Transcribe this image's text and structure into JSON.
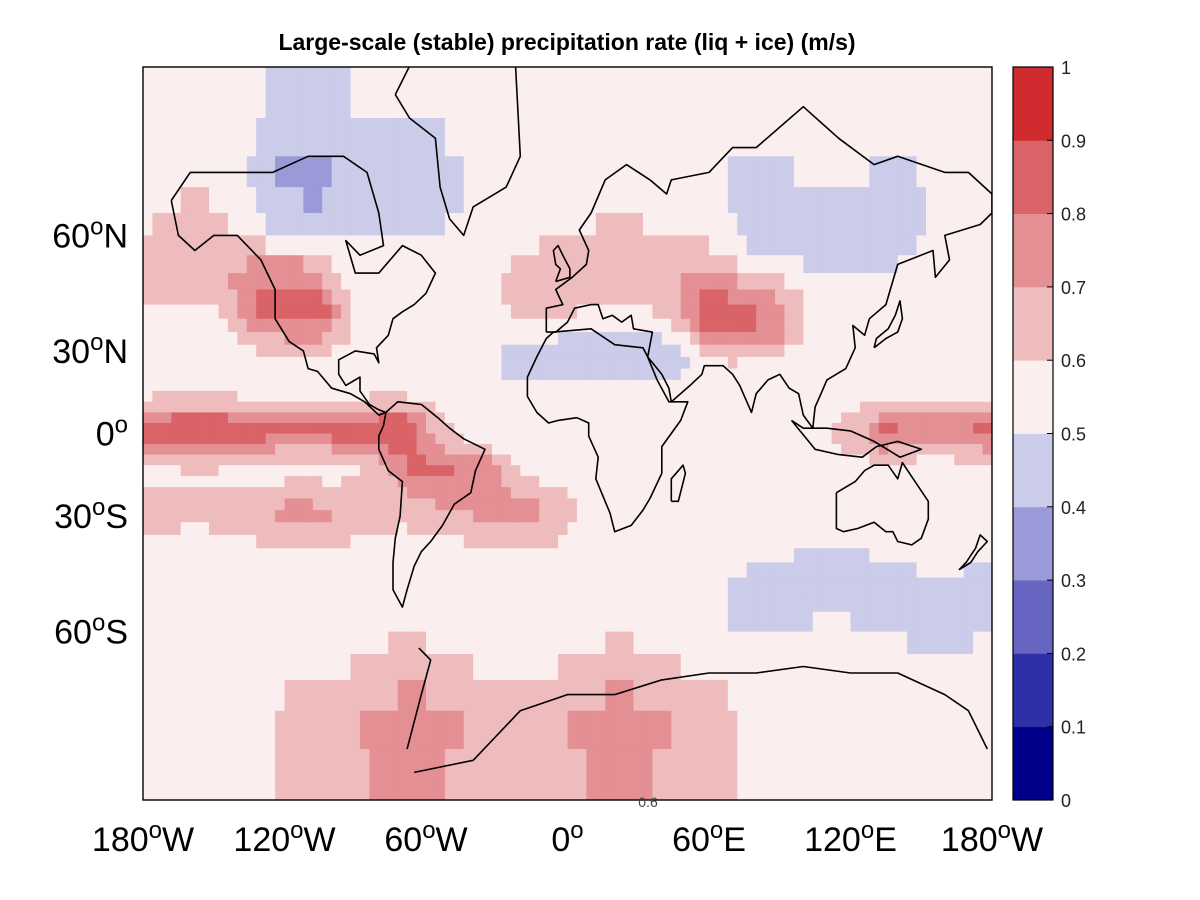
{
  "chart_data": {
    "type": "heatmap",
    "title": "Large-scale (stable) precipitation rate (liq + ice) (m/s)",
    "projection": "mercator",
    "x_ticks": [
      "180",
      "120",
      "60",
      "0",
      "60",
      "120",
      "180"
    ],
    "x_hemispheres": [
      "W",
      "W",
      "W",
      "",
      "E",
      "E",
      "W"
    ],
    "x_tick_values": [
      -180,
      -120,
      -60,
      0,
      60,
      120,
      180
    ],
    "y_ticks": [
      "60",
      "30",
      "0",
      "30",
      "60"
    ],
    "y_hemispheres": [
      "N",
      "N",
      "",
      "S",
      "S"
    ],
    "y_tick_values": [
      60,
      30,
      0,
      -30,
      -60
    ],
    "degree_symbol": "o",
    "xlim": [
      -180,
      180
    ],
    "ylim": [
      -80,
      80
    ],
    "colorbar": {
      "ticks": [
        "1",
        "0.9",
        "0.8",
        "0.7",
        "0.6",
        "0.5",
        "0.4",
        "0.3",
        "0.2",
        "0.1",
        "0"
      ],
      "range": [
        0,
        1
      ],
      "levels": [
        0,
        0.1,
        0.2,
        0.3,
        0.4,
        0.5,
        0.6,
        0.7,
        0.8,
        0.9,
        1.0
      ],
      "colors": [
        "#00008b",
        "#2f2fa8",
        "#6666c2",
        "#9a9ad8",
        "#cbcbea",
        "#fbeeee",
        "#efbcbe",
        "#e48f93",
        "#d96366",
        "#cf2b2e"
      ]
    },
    "stray_label": "0.6",
    "fields": {
      "background_value": 0.55,
      "positive_bands": [
        {
          "lat": 1,
          "lon": -180,
          "lon2": -75,
          "value": 0.85
        },
        {
          "lat": 1,
          "lon": 140,
          "lon2": 180,
          "value": 0.82
        },
        {
          "lat": -14,
          "lon": -60,
          "lon2": -40,
          "value": 0.78
        },
        {
          "lat": -28,
          "lon": -170,
          "lon2": -10,
          "value": 0.68
        },
        {
          "lat": 40,
          "lon": 65,
          "lon2": 85,
          "value": 0.78
        },
        {
          "lat": 42,
          "lon": -125,
          "lon2": -110,
          "value": 0.78
        },
        {
          "lat": 52,
          "lon": -170,
          "lon2": -120,
          "value": 0.68
        },
        {
          "lat": 50,
          "lon": -10,
          "lon2": 60,
          "value": 0.68
        },
        {
          "lat": -75,
          "lon": -110,
          "lon2": 60,
          "value": 0.7
        }
      ],
      "negative_bands": [
        {
          "lat": 68,
          "lon": -120,
          "lon2": -60,
          "value": 0.42
        },
        {
          "lat": 62,
          "lon": 90,
          "lon2": 130,
          "value": 0.42
        },
        {
          "lat": 27,
          "lon": -20,
          "lon2": 40,
          "value": 0.44
        },
        {
          "lat": -52,
          "lon": 80,
          "lon2": 170,
          "value": 0.45
        }
      ]
    }
  }
}
